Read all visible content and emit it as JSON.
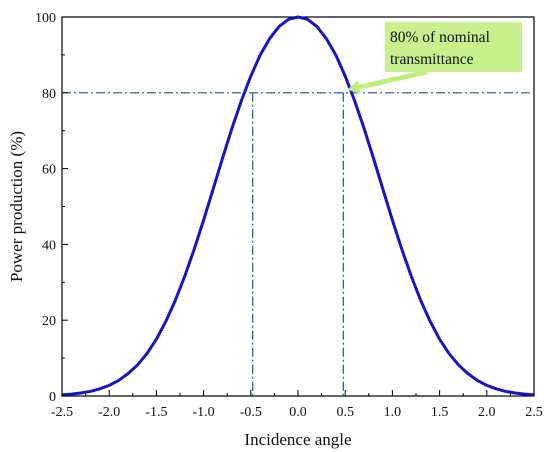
{
  "chart_data": {
    "type": "line",
    "title": "",
    "xlabel": "Incidence angle",
    "ylabel": "Power production (%)",
    "xlim": [
      -2.5,
      2.5
    ],
    "ylim": [
      0,
      100
    ],
    "xticks": [
      -2.5,
      -2.0,
      -1.5,
      -1.0,
      -0.5,
      0.0,
      0.5,
      1.0,
      1.5,
      2.0,
      2.5
    ],
    "xtick_labels": [
      "-2.5",
      "-2.0",
      "-1.5",
      "-1.0",
      "-0.5",
      "0.0",
      "0.5",
      "1.0",
      "1.5",
      "2.0",
      "2.5"
    ],
    "yticks": [
      0,
      20,
      40,
      60,
      80,
      100
    ],
    "ytick_labels": [
      "0",
      "20",
      "40",
      "60",
      "80",
      "100"
    ],
    "grid": false,
    "series": [
      {
        "color": "#1515c8",
        "x": [
          -2.5,
          -2.4,
          -2.3,
          -2.2,
          -2.1,
          -2.0,
          -1.9,
          -1.8,
          -1.7,
          -1.6,
          -1.5,
          -1.4,
          -1.3,
          -1.2,
          -1.1,
          -1.0,
          -0.9,
          -0.8,
          -0.7,
          -0.6,
          -0.5,
          -0.4,
          -0.3,
          -0.2,
          -0.1,
          0.0,
          0.1,
          0.2,
          0.3,
          0.4,
          0.5,
          0.6,
          0.7,
          0.8,
          0.9,
          1.0,
          1.1,
          1.2,
          1.3,
          1.4,
          1.5,
          1.6,
          1.7,
          1.8,
          1.9,
          2.0,
          2.1,
          2.2,
          2.3,
          2.4,
          2.5
        ],
        "y": [
          0.3,
          0.5,
          0.8,
          1.2,
          1.9,
          2.8,
          4.1,
          5.9,
          8.2,
          11.2,
          15.0,
          19.7,
          25.2,
          31.6,
          38.7,
          46.4,
          54.5,
          62.7,
          70.6,
          77.9,
          84.4,
          90.0,
          94.3,
          97.5,
          99.4,
          100.0,
          99.4,
          97.5,
          94.3,
          90.0,
          84.4,
          77.9,
          70.6,
          62.7,
          54.5,
          46.4,
          38.7,
          31.6,
          25.2,
          19.7,
          15.0,
          11.2,
          8.2,
          5.9,
          4.1,
          2.8,
          1.9,
          1.2,
          0.8,
          0.5,
          0.3
        ]
      }
    ],
    "reference_lines": {
      "color": "#1f4fa8",
      "horizontal_y": 80,
      "vertical_x": [
        -0.48,
        0.48
      ]
    },
    "annotation": {
      "lines": [
        "80% of nominal",
        "transmittance"
      ],
      "box_color": "#c8f08c",
      "arrow_color": "#bdf07a",
      "points_to": {
        "x": 0.48,
        "y": 80
      }
    }
  }
}
